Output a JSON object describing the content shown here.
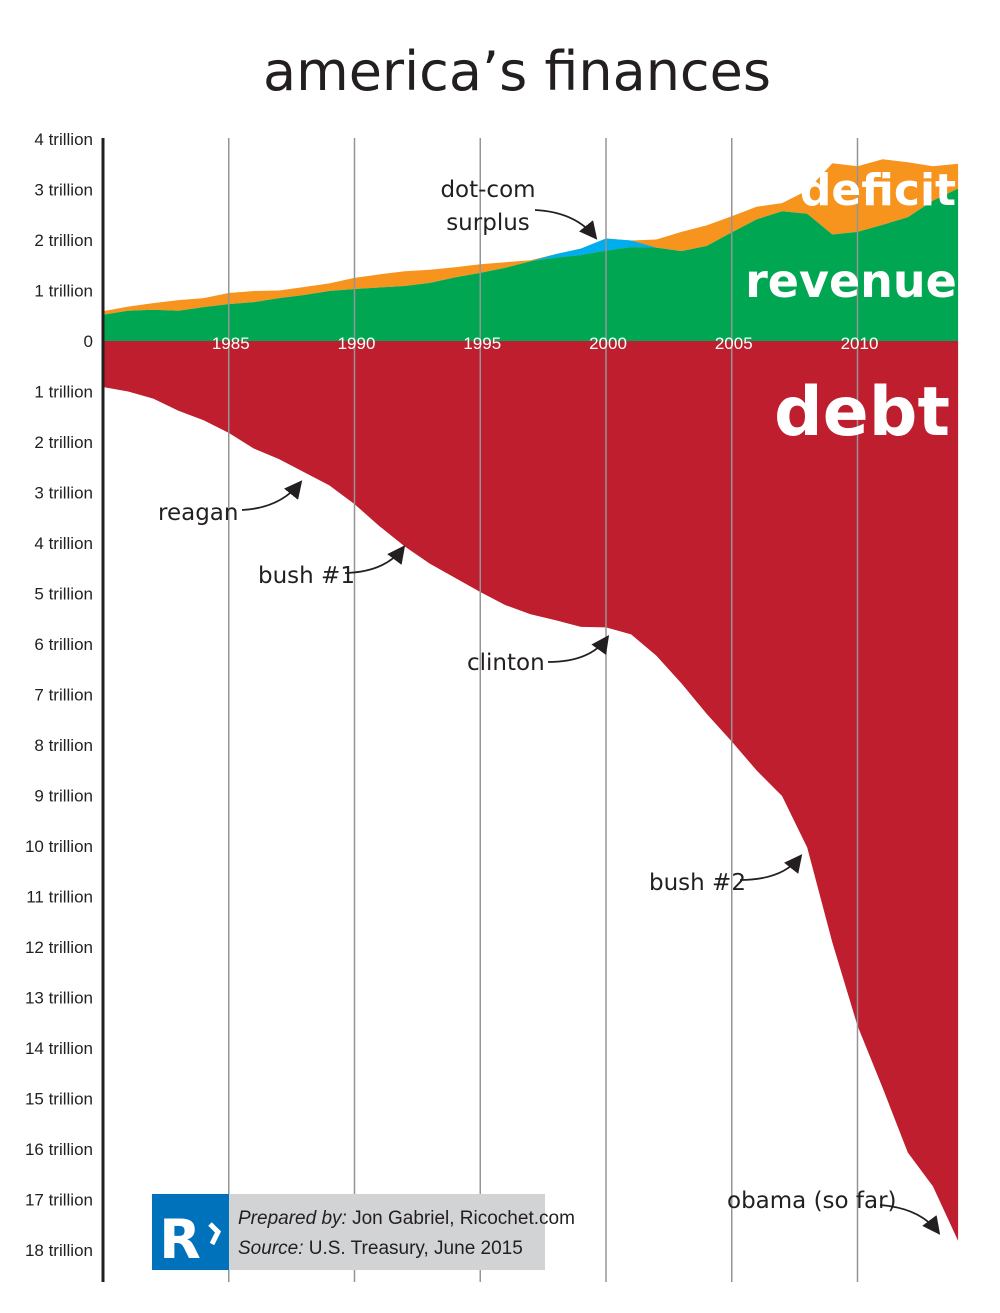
{
  "title": "america’s finances",
  "chart_data": {
    "type": "area",
    "x": [
      1980,
      1981,
      1982,
      1983,
      1984,
      1985,
      1986,
      1987,
      1988,
      1989,
      1990,
      1991,
      1992,
      1993,
      1994,
      1995,
      1996,
      1997,
      1998,
      1999,
      2000,
      2001,
      2002,
      2003,
      2004,
      2005,
      2006,
      2007,
      2008,
      2009,
      2010,
      2011,
      2012,
      2013,
      2014
    ],
    "xlim": [
      1980,
      2014
    ],
    "x_ticks": [
      "1985",
      "1990",
      "1995",
      "2000",
      "2005",
      "2010"
    ],
    "y_ticks_positive": [
      "4 trillion",
      "3 trillion",
      "2 trillion",
      "1 trillion",
      "0"
    ],
    "y_ticks_negative": [
      "1 trillion",
      "2 trillion",
      "3 trillion",
      "4 trillion",
      "5 trillion",
      "6 trillion",
      "7 trillion",
      "8 trillion",
      "9 trillion",
      "10 trillion",
      "11 trillion",
      "12 trillion",
      "13 trillion",
      "14 trillion",
      "15 trillion",
      "16 trillion",
      "17 trillion",
      "18 trillion"
    ],
    "ylim_trillions": [
      -18,
      4
    ],
    "grid": "vertical lines at 5-year marks",
    "series": [
      {
        "name": "revenue",
        "color": "#00a651",
        "values": [
          0.52,
          0.6,
          0.62,
          0.6,
          0.67,
          0.73,
          0.77,
          0.85,
          0.91,
          0.99,
          1.03,
          1.06,
          1.09,
          1.15,
          1.26,
          1.35,
          1.45,
          1.58,
          1.72,
          1.83,
          2.03,
          1.99,
          1.85,
          1.78,
          1.88,
          2.15,
          2.41,
          2.57,
          2.52,
          2.11,
          2.16,
          2.3,
          2.45,
          2.78,
          3.02
        ]
      },
      {
        "name": "spending",
        "values": [
          0.59,
          0.68,
          0.75,
          0.81,
          0.85,
          0.95,
          0.99,
          1.0,
          1.07,
          1.14,
          1.25,
          1.32,
          1.38,
          1.41,
          1.46,
          1.52,
          1.56,
          1.6,
          1.65,
          1.7,
          1.79,
          1.86,
          2.01,
          2.16,
          2.29,
          2.47,
          2.66,
          2.73,
          2.98,
          3.52,
          3.46,
          3.6,
          3.54,
          3.46,
          3.51
        ]
      },
      {
        "name": "debt",
        "color": "#be1e2d",
        "values": [
          0.91,
          1.0,
          1.14,
          1.38,
          1.57,
          1.82,
          2.13,
          2.34,
          2.6,
          2.86,
          3.23,
          3.67,
          4.07,
          4.41,
          4.69,
          4.97,
          5.23,
          5.41,
          5.53,
          5.66,
          5.67,
          5.81,
          6.23,
          6.78,
          7.38,
          7.93,
          8.51,
          9.01,
          10.03,
          11.91,
          13.56,
          14.79,
          16.07,
          16.74,
          17.82
        ]
      }
    ],
    "colors": {
      "deficit": "#f7941d",
      "surplus": "#00aeef",
      "revenue": "#00a651",
      "debt": "#be1e2d"
    },
    "labels": {
      "deficit": "deficit",
      "revenue": "revenue",
      "debt": "debt"
    },
    "annotations": {
      "dotcom_1": "dot-com",
      "dotcom_2": "surplus",
      "reagan": "reagan",
      "bush1": "bush #1",
      "clinton": "clinton",
      "bush2": "bush #2",
      "obama": "obama (so far)"
    }
  },
  "footer": {
    "logo_letter": "R",
    "logo_color": "#0072bc",
    "prepared_label": "Prepared by:",
    "prepared_value": " Jon Gabriel, Ricochet.com",
    "source_label": "Source:",
    "source_value": " U.S. Treasury, June 2015"
  }
}
